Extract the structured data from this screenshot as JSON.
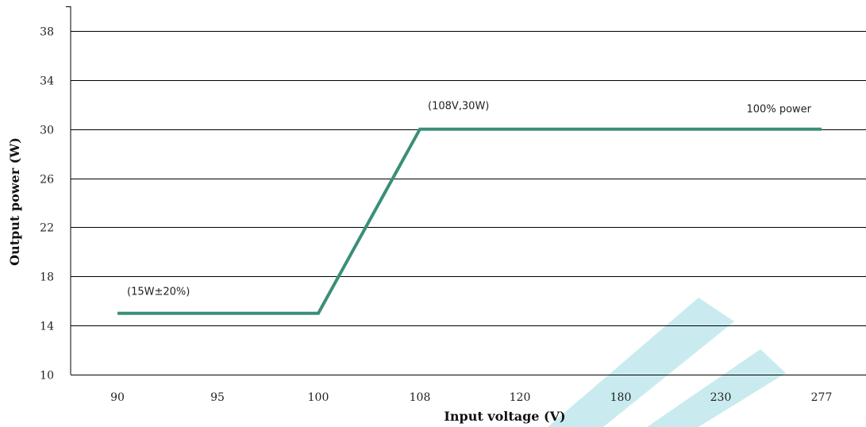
{
  "chart_data": {
    "type": "line",
    "xlabel": "Input voltage (V)",
    "ylabel": "Output power (W)",
    "categories": [
      "90",
      "95",
      "100",
      "108",
      "120",
      "180",
      "230",
      "277"
    ],
    "ylim": [
      10,
      40
    ],
    "yticks": [
      10,
      14,
      18,
      22,
      26,
      30,
      34,
      38
    ],
    "grid": true,
    "series": [
      {
        "values": [
          15,
          15,
          15,
          30,
          30,
          30,
          30,
          30
        ],
        "color": "#3a8f79"
      }
    ],
    "annotations": [
      {
        "text": "(15W±20%)",
        "x": "90",
        "y": 15
      },
      {
        "text": "(108V,30W)",
        "x": "108",
        "y": 30
      },
      {
        "text": "100% power",
        "x": "277",
        "y": 30
      }
    ]
  }
}
